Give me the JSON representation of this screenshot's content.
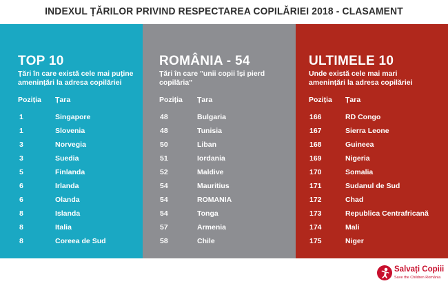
{
  "title": "INDEXUL ȚĂRILOR PRIVIND RESPECTAREA COPILĂRIEI 2018 - CLASAMENT",
  "panels": {
    "top": {
      "heading": "TOP 10",
      "subtitle": "Țări în care există cele mai puține\namenințări la adresa copilăriei",
      "col_position": "Poziția",
      "col_country": "Țara",
      "color": "#1aa8c3",
      "rows": [
        {
          "rank": "1",
          "country": "Singapore"
        },
        {
          "rank": "1",
          "country": "Slovenia"
        },
        {
          "rank": "3",
          "country": "Norvegia"
        },
        {
          "rank": "3",
          "country": "Suedia"
        },
        {
          "rank": "5",
          "country": "Finlanda"
        },
        {
          "rank": "6",
          "country": "Irlanda"
        },
        {
          "rank": "6",
          "country": "Olanda"
        },
        {
          "rank": "8",
          "country": "Islanda"
        },
        {
          "rank": "8",
          "country": "Italia"
        },
        {
          "rank": "8",
          "country": "Coreea de Sud"
        }
      ]
    },
    "romania": {
      "heading": "ROMÂNIA - 54",
      "subtitle": "Țări în care \"unii copii își pierd\ncopilăria\"",
      "col_position": "Poziția",
      "col_country": "Țara",
      "color": "#8d8e92",
      "rows": [
        {
          "rank": "48",
          "country": "Bulgaria"
        },
        {
          "rank": "48",
          "country": "Tunisia"
        },
        {
          "rank": "50",
          "country": "Liban"
        },
        {
          "rank": "51",
          "country": "Iordania"
        },
        {
          "rank": "52",
          "country": "Maldive"
        },
        {
          "rank": "54",
          "country": "Mauritius"
        },
        {
          "rank": "54",
          "country": "ROMANIA"
        },
        {
          "rank": "54",
          "country": "Tonga"
        },
        {
          "rank": "57",
          "country": "Armenia"
        },
        {
          "rank": "58",
          "country": "Chile"
        }
      ]
    },
    "bottom": {
      "heading": "ULTIMELE 10",
      "subtitle": "Unde există cele mai mari\namenințări la adresa copilăriei",
      "col_position": "Poziția",
      "col_country": "Țara",
      "color": "#b0281c",
      "rows": [
        {
          "rank": "166",
          "country": "RD Congo"
        },
        {
          "rank": "167",
          "country": "Sierra Leone"
        },
        {
          "rank": "168",
          "country": "Guineea"
        },
        {
          "rank": "169",
          "country": "Nigeria"
        },
        {
          "rank": "170",
          "country": "Somalia"
        },
        {
          "rank": "171",
          "country": "Sudanul de Sud"
        },
        {
          "rank": "172",
          "country": "Chad"
        },
        {
          "rank": "173",
          "country": "Republica Centrafricană"
        },
        {
          "rank": "174",
          "country": "Mali"
        },
        {
          "rank": "175",
          "country": "Niger"
        }
      ]
    }
  },
  "logo": {
    "name": "Salvați Copiii",
    "tagline": "Save the Children România",
    "icon": "child-silhouette-icon",
    "color": "#c8102e"
  }
}
